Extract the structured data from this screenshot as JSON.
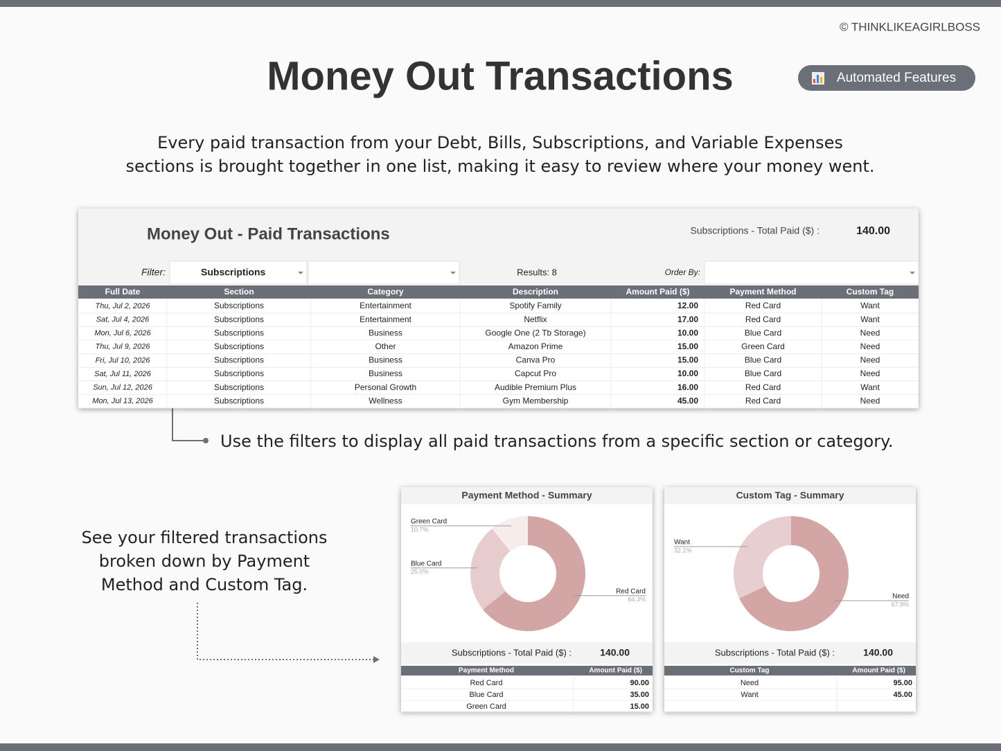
{
  "header": {
    "copyright": "© THINKLIKEAGIRLBOSS",
    "title": "Money Out Transactions",
    "badge": "Automated Features"
  },
  "intro": {
    "lines": [
      "Every paid transaction from your Debt, Bills, Subscriptions, and Variable Expenses",
      "sections is brought together in one list, making it easy to review where your money went."
    ]
  },
  "sheet": {
    "title": "Money Out - Paid Transactions",
    "total_label": "Subscriptions - Total Paid ($) :",
    "total_value": "140.00",
    "filter_label": "Filter:",
    "filter_value": "Subscriptions",
    "results": "Results: 8",
    "order_label": "Order By:",
    "columns": [
      "Full Date",
      "Section",
      "Category",
      "Description",
      "Amount Paid ($)",
      "Payment Method",
      "Custom Tag"
    ],
    "rows": [
      [
        "Thu, Jul 2, 2026",
        "Subscriptions",
        "Entertainment",
        "Spotify Family",
        "12.00",
        "Red Card",
        "Want"
      ],
      [
        "Sat, Jul 4, 2026",
        "Subscriptions",
        "Entertainment",
        "Netflix",
        "17.00",
        "Red Card",
        "Want"
      ],
      [
        "Mon, Jul 6, 2026",
        "Subscriptions",
        "Business",
        "Google One (2 Tb Storage)",
        "10.00",
        "Blue Card",
        "Need"
      ],
      [
        "Thu, Jul 9, 2026",
        "Subscriptions",
        "Other",
        "Amazon Prime",
        "15.00",
        "Green Card",
        "Need"
      ],
      [
        "Fri, Jul 10, 2026",
        "Subscriptions",
        "Business",
        "Canva Pro",
        "15.00",
        "Blue Card",
        "Need"
      ],
      [
        "Sat, Jul 11, 2026",
        "Subscriptions",
        "Business",
        "Capcut Pro",
        "10.00",
        "Blue Card",
        "Need"
      ],
      [
        "Sun, Jul 12, 2026",
        "Subscriptions",
        "Personal Growth",
        "Audible Premium Plus",
        "16.00",
        "Red Card",
        "Want"
      ],
      [
        "Mon, Jul 13, 2026",
        "Subscriptions",
        "Wellness",
        "Gym Membership",
        "45.00",
        "Red Card",
        "Need"
      ]
    ]
  },
  "filter_note": "Use the filters to display all paid transactions from a specific section or category.",
  "summary_note": {
    "lines": [
      "See your filtered transactions",
      "broken down by Payment",
      "Method and Custom Tag."
    ]
  },
  "summaries": [
    {
      "title": "Payment Method - Summary",
      "chart_data": {
        "type": "donut",
        "categories": [
          "Red Card",
          "Blue Card",
          "Green Card"
        ],
        "values": [
          64.3,
          25.0,
          10.7
        ],
        "value_labels": [
          "64.3%",
          "25.0%",
          "10.7%"
        ],
        "colors": [
          "#d3a5a5",
          "#e6cccc",
          "#f6ecea"
        ]
      },
      "total_label": "Subscriptions - Total Paid ($) :",
      "total_value": "140.00",
      "columns": [
        "Payment Method",
        "Amount Paid ($)"
      ],
      "rows": [
        [
          "Red Card",
          "90.00"
        ],
        [
          "Blue Card",
          "35.00"
        ],
        [
          "Green Card",
          "15.00"
        ]
      ]
    },
    {
      "title": "Custom Tag - Summary",
      "chart_data": {
        "type": "donut",
        "categories": [
          "Need",
          "Want"
        ],
        "values": [
          67.9,
          32.1
        ],
        "value_labels": [
          "67.9%",
          "32.1%"
        ],
        "colors": [
          "#d3a5a5",
          "#e8cfcf"
        ]
      },
      "total_label": "Subscriptions - Total Paid ($) :",
      "total_value": "140.00",
      "columns": [
        "Custom Tag",
        "Amount Paid ($)"
      ],
      "rows": [
        [
          "Need",
          "95.00"
        ],
        [
          "Want",
          "45.00"
        ]
      ]
    }
  ]
}
